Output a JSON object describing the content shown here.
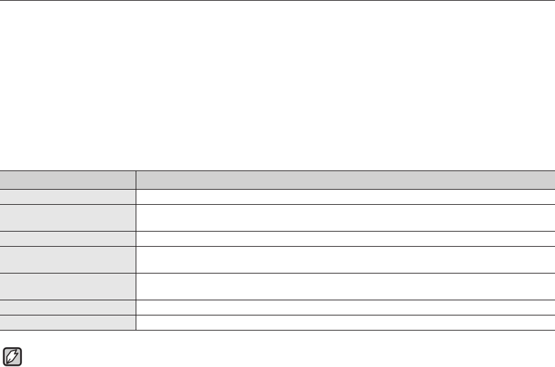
{
  "document": {
    "table": {
      "header": [
        "",
        ""
      ],
      "rows": [
        [
          "",
          ""
        ],
        [
          "",
          ""
        ],
        [
          "",
          ""
        ],
        [
          "",
          ""
        ],
        [
          "",
          ""
        ],
        [
          "",
          ""
        ],
        [
          "",
          ""
        ]
      ]
    },
    "note_icon": "note-pencil-icon",
    "colors": {
      "header_bg": "#d1d1d1",
      "label_col_bg": "#e6e6e6",
      "rule": "#231f20"
    }
  }
}
